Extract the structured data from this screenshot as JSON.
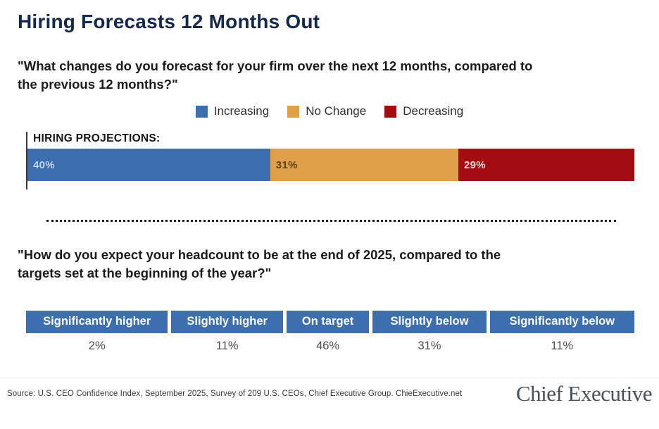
{
  "title": "Hiring Forecasts 12 Months Out",
  "question1": "\"What changes do you forecast for your firm over the next 12 months, compared to\nthe previous 12 months?\"",
  "question2": "\"How do you expect your headcount to be at the end of 2025, compared to the\ntargets set at the beginning of the year?\"",
  "legend": {
    "items": [
      {
        "label": "Increasing",
        "color": "#3d6eae"
      },
      {
        "label": "No Change",
        "color": "#e0a04a"
      },
      {
        "label": "Decreasing",
        "color": "#a30d11"
      }
    ]
  },
  "bar": {
    "label": "HIRING PROJECTIONS:",
    "segments": [
      {
        "name": "Increasing",
        "value": 40,
        "label": "40%",
        "color": "#3d6eae"
      },
      {
        "name": "No Change",
        "value": 31,
        "label": "31%",
        "color": "#e0a04a"
      },
      {
        "name": "Decreasing",
        "value": 29,
        "label": "29%",
        "color": "#a30d11"
      }
    ]
  },
  "table": {
    "columns": [
      {
        "header": "Significantly higher",
        "value": "2%"
      },
      {
        "header": "Slightly higher",
        "value": "11%"
      },
      {
        "header": "On target",
        "value": "46%"
      },
      {
        "header": "Slightly below",
        "value": "31%"
      },
      {
        "header": "Significantly below",
        "value": "11%"
      }
    ]
  },
  "footer": {
    "source": "Source: U.S. CEO Confidence Index, September 2025, Survey of 209 U.S. CEOs, Chief Executive Group. ChieExecutive.net",
    "logo": "Chief Executive"
  },
  "chart_data": [
    {
      "type": "bar",
      "subtype": "stacked-horizontal",
      "title": "HIRING PROJECTIONS:",
      "categories": [
        "Increasing",
        "No Change",
        "Decreasing"
      ],
      "values": [
        40,
        31,
        29
      ],
      "unit": "%",
      "colors": [
        "#3d6eae",
        "#e0a04a",
        "#a30d11"
      ],
      "legend_position": "top-center",
      "data_labels": [
        "40%",
        "31%",
        "29%"
      ]
    },
    {
      "type": "table",
      "title": "Headcount vs. targets at end of 2025",
      "categories": [
        "Significantly higher",
        "Slightly higher",
        "On target",
        "Slightly below",
        "Significantly below"
      ],
      "values": [
        2,
        11,
        46,
        31,
        11
      ],
      "unit": "%"
    }
  ]
}
